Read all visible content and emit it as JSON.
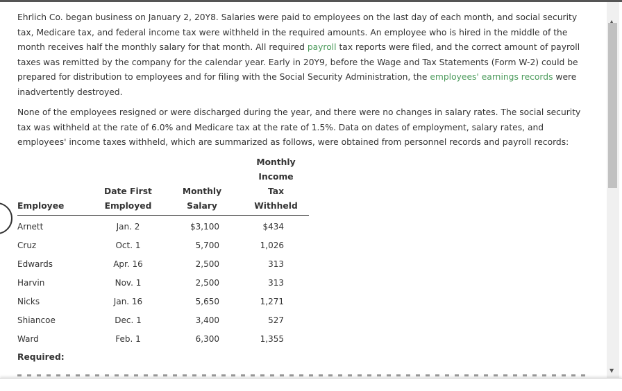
{
  "intro": {
    "a": "Ehrlich Co. began business on January 2, 20Y8. Salaries were paid to employees on the last day of each month, and social security tax, Medicare tax, and federal income tax were withheld in the required amounts. An employee who is hired in the middle of the month receives half the monthly salary for that month. All required ",
    "link1": "payroll",
    "b": " tax reports were filed, and the correct amount of payroll taxes was remitted by the company for the calendar year. Early in 20Y9, before the Wage and Tax Statements (Form W-2) could be prepared for distribution to employees and for filing with the Social Security Administration, the ",
    "link2": "employees' earnings records",
    "c": " were inadvertently destroyed."
  },
  "para2": "None of the employees resigned or were discharged during the year, and there were no changes in salary rates. The social security tax was withheld at the rate of 6.0% and Medicare tax at the rate of 1.5%. Data on dates of employment, salary rates, and employees' income taxes withheld, which are summarized as follows, were obtained from personnel records and payroll records:",
  "table": {
    "headers": {
      "employee": "Employee",
      "date1": "Date First",
      "date2": "Employed",
      "sal1": "Monthly",
      "sal2": "Salary",
      "tax1": "Monthly",
      "tax2": "Income",
      "tax3": "Tax",
      "tax4": "Withheld"
    },
    "rows": [
      [
        "Arnett",
        "Jan. 2",
        "$3,100",
        "$434"
      ],
      [
        "Cruz",
        "Oct. 1",
        "5,700",
        "1,026"
      ],
      [
        "Edwards",
        "Apr. 16",
        "2,500",
        "313"
      ],
      [
        "Harvin",
        "Nov. 1",
        "2,500",
        "313"
      ],
      [
        "Nicks",
        "Jan. 16",
        "5,650",
        "1,271"
      ],
      [
        "Shiancoe",
        "Dec. 1",
        "3,400",
        "527"
      ],
      [
        "Ward",
        "Feb. 1",
        "6,300",
        "1,355"
      ]
    ]
  },
  "required": "Required:",
  "colors": {
    "link": "#4a9a5a",
    "text": "#333333"
  }
}
